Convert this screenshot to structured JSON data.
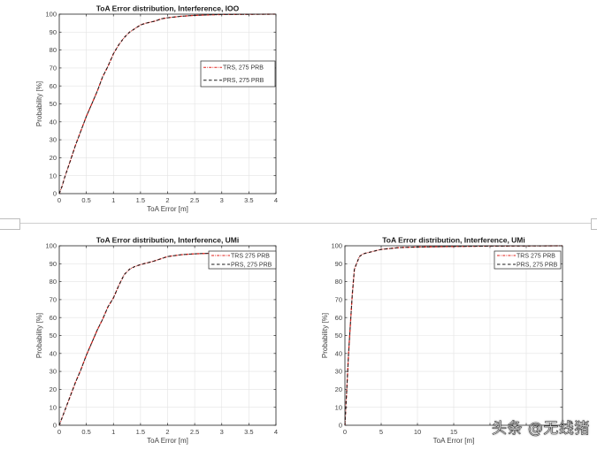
{
  "separator": {
    "visible": true
  },
  "watermark": {
    "text": "头条 @无线猪"
  },
  "chart_data": [
    {
      "id": "ioo",
      "type": "line",
      "title": "ToA Error distribution, Interference, IOO",
      "xlabel": "ToA Error [m]",
      "ylabel": "Probability [%]",
      "xlim": [
        0,
        4
      ],
      "ylim": [
        0,
        100
      ],
      "xticks": [
        0,
        0.5,
        1,
        1.5,
        2,
        2.5,
        3,
        3.5,
        4
      ],
      "xtick_labels": [
        "0",
        "0.5",
        "1",
        "1.5",
        "2",
        "2.5",
        "3",
        "3.5",
        "4"
      ],
      "yticks": [
        0,
        10,
        20,
        30,
        40,
        50,
        60,
        70,
        80,
        90,
        100
      ],
      "ytick_labels": [
        "0",
        "10",
        "20",
        "30",
        "40",
        "50",
        "60",
        "70",
        "80",
        "90",
        "100"
      ],
      "grid": true,
      "legend_position": "center-right",
      "series": [
        {
          "name": "TRS, 275 PRB",
          "color": "#e0201b",
          "style": "dash-dot",
          "x": [
            0,
            0.05,
            0.1,
            0.2,
            0.3,
            0.4,
            0.5,
            0.6,
            0.7,
            0.8,
            0.9,
            1.0,
            1.1,
            1.2,
            1.3,
            1.4,
            1.5,
            1.6,
            1.75,
            1.9,
            2.0,
            2.25,
            2.5,
            2.75,
            3.0,
            3.5,
            4.0
          ],
          "y": [
            0,
            4,
            9,
            18,
            27,
            35,
            43,
            50,
            57,
            65,
            71,
            78,
            83,
            87,
            90,
            92,
            94,
            95,
            96,
            97.5,
            98,
            98.8,
            99.3,
            99.6,
            99.8,
            99.9,
            100
          ]
        },
        {
          "name": "PRS, 275 PRB",
          "color": "#1a1a1a",
          "style": "dashed",
          "x": [
            0,
            0.05,
            0.1,
            0.2,
            0.3,
            0.4,
            0.5,
            0.6,
            0.7,
            0.8,
            0.9,
            1.0,
            1.1,
            1.2,
            1.3,
            1.4,
            1.5,
            1.6,
            1.75,
            1.9,
            2.0,
            2.25,
            2.5,
            2.75,
            3.0,
            3.5,
            4.0
          ],
          "y": [
            0,
            4,
            9,
            18,
            27,
            35,
            43,
            50,
            57,
            65,
            71,
            78,
            83,
            87,
            90,
            92,
            94,
            95,
            96,
            97.5,
            98,
            98.8,
            99.3,
            99.6,
            99.8,
            99.9,
            100
          ]
        }
      ]
    },
    {
      "id": "umi-zoom",
      "type": "line",
      "title": "ToA Error distribution, Interference, UMi",
      "xlabel": "ToA Error [m]",
      "ylabel": "Probability [%]",
      "xlim": [
        0,
        4
      ],
      "ylim": [
        0,
        100
      ],
      "xticks": [
        0,
        0.5,
        1,
        1.5,
        2,
        2.5,
        3,
        3.5,
        4
      ],
      "xtick_labels": [
        "0",
        "0.5",
        "1",
        "1.5",
        "2",
        "2.5",
        "3",
        "3.5",
        "4"
      ],
      "yticks": [
        0,
        10,
        20,
        30,
        40,
        50,
        60,
        70,
        80,
        90,
        100
      ],
      "ytick_labels": [
        "0",
        "10",
        "20",
        "30",
        "40",
        "50",
        "60",
        "70",
        "80",
        "90",
        "100"
      ],
      "grid": true,
      "legend_position": "top-right",
      "series": [
        {
          "name": "TRS 275 PRB",
          "color": "#e0201b",
          "style": "dash-dot",
          "x": [
            0,
            0.1,
            0.2,
            0.3,
            0.4,
            0.5,
            0.6,
            0.7,
            0.8,
            0.9,
            1.0,
            1.1,
            1.2,
            1.3,
            1.4,
            1.5,
            1.75,
            2.0,
            2.25,
            2.5,
            3.0,
            3.5,
            4.0
          ],
          "y": [
            0,
            8,
            16,
            24,
            31,
            39,
            46,
            53,
            59,
            66,
            71,
            78,
            84,
            87,
            88.5,
            89.5,
            91.5,
            94,
            95,
            95.5,
            96,
            96.3,
            96.5
          ]
        },
        {
          "name": "PRS, 275 PRB",
          "color": "#1a1a1a",
          "style": "dashed",
          "x": [
            0,
            0.1,
            0.2,
            0.3,
            0.4,
            0.5,
            0.6,
            0.7,
            0.8,
            0.9,
            1.0,
            1.1,
            1.2,
            1.3,
            1.4,
            1.5,
            1.75,
            2.0,
            2.25,
            2.5,
            3.0,
            3.5,
            4.0
          ],
          "y": [
            0,
            8,
            16,
            24,
            31,
            39,
            46,
            53,
            59,
            66,
            71,
            78,
            84,
            87,
            88.5,
            89.5,
            91.5,
            94,
            95,
            95.5,
            96,
            96.3,
            96.5
          ]
        }
      ]
    },
    {
      "id": "umi-full",
      "type": "line",
      "title": "ToA Error distribution, Interference, UMi",
      "xlabel": "ToA Error [m]",
      "ylabel": "Probability [%]",
      "xlim": [
        0,
        30
      ],
      "ylim": [
        0,
        100
      ],
      "xticks": [
        0,
        5,
        10,
        15,
        20,
        25,
        30
      ],
      "xtick_labels": [
        "0",
        "5",
        "10",
        "15",
        "",
        "",
        ""
      ],
      "yticks": [
        0,
        10,
        20,
        30,
        40,
        50,
        60,
        70,
        80,
        90,
        100
      ],
      "ytick_labels": [
        "0",
        "10",
        "20",
        "30",
        "40",
        "50",
        "60",
        "70",
        "80",
        "90",
        "100"
      ],
      "grid": true,
      "legend_position": "top-right",
      "series": [
        {
          "name": "TRS 275 PRB",
          "color": "#e0201b",
          "style": "dash-dot",
          "x": [
            0,
            0.25,
            0.5,
            1.0,
            1.3,
            1.7,
            2.0,
            2.5,
            3.5,
            5.0,
            7.5,
            10,
            15,
            20,
            25,
            30
          ],
          "y": [
            0,
            20,
            40,
            72,
            87,
            91,
            94,
            95.5,
            96.5,
            98,
            99,
            99.3,
            99.6,
            99.8,
            99.9,
            100
          ]
        },
        {
          "name": "PRS, 275 PRB",
          "color": "#1a1a1a",
          "style": "dashed",
          "x": [
            0,
            0.25,
            0.5,
            1.0,
            1.3,
            1.7,
            2.0,
            2.5,
            3.5,
            5.0,
            7.5,
            10,
            15,
            20,
            25,
            30
          ],
          "y": [
            0,
            20,
            40,
            72,
            87,
            91,
            94,
            95.5,
            96.5,
            98,
            99,
            99.3,
            99.6,
            99.8,
            99.9,
            100
          ]
        }
      ]
    }
  ]
}
